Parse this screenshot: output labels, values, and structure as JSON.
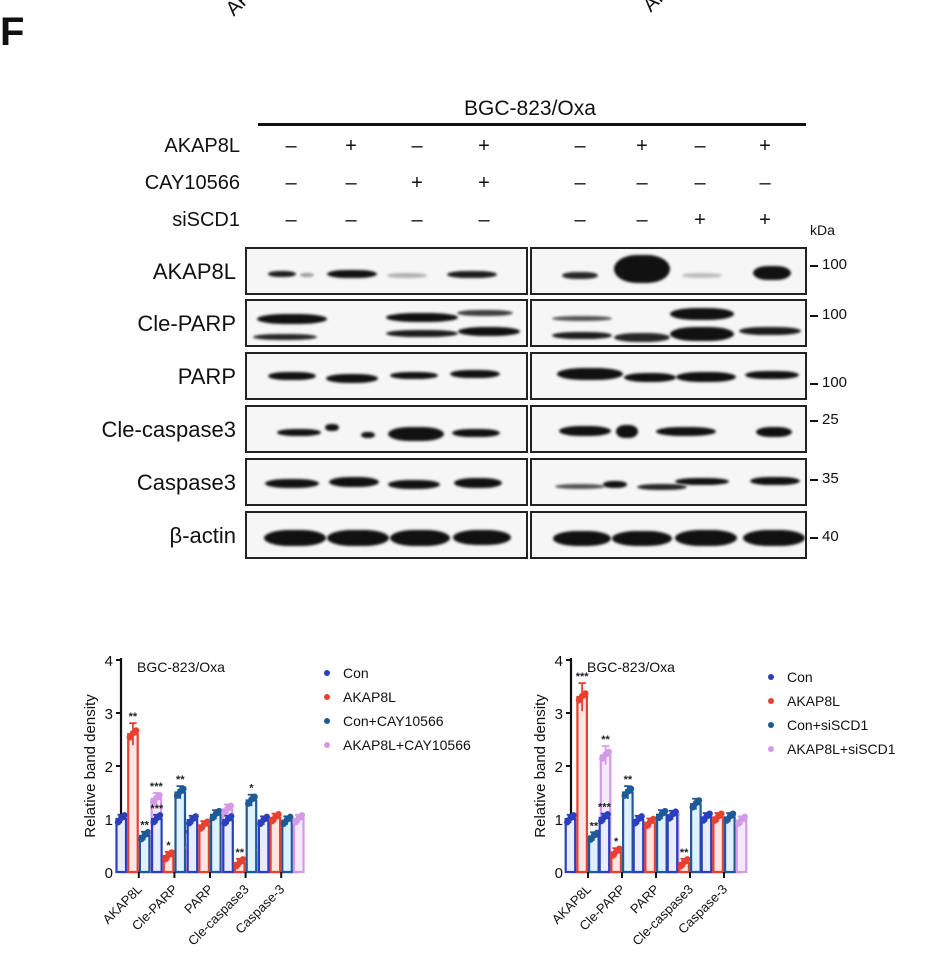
{
  "figure": {
    "panel_letter": "F",
    "top_fragments": [
      "AK",
      "AK"
    ],
    "cell_line": "BGC-823/Oxa",
    "kda_label": "kDa",
    "treatments": [
      {
        "label": "AKAP8L",
        "signs": [
          "–",
          "+",
          "–",
          "+",
          "–",
          "+",
          "–",
          "+"
        ]
      },
      {
        "label": "CAY10566",
        "signs": [
          "–",
          "–",
          "+",
          "+",
          "–",
          "–",
          "–",
          "–"
        ]
      },
      {
        "label": "siSCD1",
        "signs": [
          "–",
          "–",
          "–",
          "–",
          "–",
          "–",
          "+",
          "+"
        ]
      }
    ],
    "blots": [
      {
        "label": "AKAP8L",
        "mw": "100"
      },
      {
        "label": "Cle-PARP",
        "mw": "100"
      },
      {
        "label": "PARP",
        "mw": "100"
      },
      {
        "label": "Cle-caspase3",
        "mw": "25"
      },
      {
        "label": "Caspase3",
        "mw": "35"
      },
      {
        "label": "β-actin",
        "mw": "40"
      }
    ]
  },
  "colors": {
    "con": "#2a3fbf",
    "akap8l": "#e8402f",
    "con_treat": "#1f5a96",
    "akap8l_treat": "#d49ae8"
  },
  "chart_data": [
    {
      "type": "bar",
      "title": "BGC-823/Oxa",
      "xlabel": "",
      "ylabel": "Relative  band density",
      "ylim": [
        0,
        4
      ],
      "yticks": [
        "0",
        "1",
        "2",
        "3",
        "4"
      ],
      "categories": [
        "AKAP8L",
        "Cle-PARP",
        "PARP",
        "Cle-caspase3",
        "Caspase-3"
      ],
      "legend_position": "right",
      "series": [
        {
          "name": "Con",
          "values": [
            1.0,
            1.0,
            0.98,
            0.98,
            0.97
          ],
          "sig": [
            "",
            "***",
            "",
            "",
            ""
          ]
        },
        {
          "name": "AKAP8L",
          "values": [
            2.6,
            0.3,
            0.88,
            0.17,
            1.02
          ],
          "sig": [
            "**",
            "*",
            "",
            "**",
            ""
          ]
        },
        {
          "name": "Con+CAY10566",
          "values": [
            0.68,
            1.5,
            1.08,
            1.35,
            0.97
          ],
          "sig": [
            "**",
            "**",
            "",
            "*",
            ""
          ]
        },
        {
          "name": "AKAP8L+CAY10566",
          "values": [
            1.38,
            0.52,
            1.18,
            0.48,
            1.0
          ],
          "sig": [
            "***",
            "***",
            "",
            "*",
            ""
          ]
        }
      ]
    },
    {
      "type": "bar",
      "title": "BGC-823/Oxa",
      "xlabel": "",
      "ylabel": "Relative  band density",
      "ylim": [
        0,
        4
      ],
      "yticks": [
        "0",
        "1",
        "2",
        "3",
        "4"
      ],
      "categories": [
        "AKAP8L",
        "Cle-PARP",
        "PARP",
        "Cle-caspase3",
        "Caspase-3"
      ],
      "legend_position": "right",
      "series": [
        {
          "name": "Con",
          "values": [
            1.0,
            1.02,
            0.98,
            1.07,
            1.03
          ],
          "sig": [
            "",
            "***",
            "",
            "",
            ""
          ]
        },
        {
          "name": "AKAP8L",
          "values": [
            3.3,
            0.37,
            0.93,
            0.17,
            1.03
          ],
          "sig": [
            "***",
            "*",
            "",
            "**",
            ""
          ]
        },
        {
          "name": "Con+siSCD1",
          "values": [
            0.67,
            1.5,
            1.08,
            1.28,
            1.03
          ],
          "sig": [
            "**",
            "**",
            "",
            "",
            ""
          ]
        },
        {
          "name": "AKAP8L+siSCD1",
          "values": [
            2.2,
            0.63,
            1.02,
            0.47,
            0.97
          ],
          "sig": [
            "**",
            "***",
            "",
            "*",
            ""
          ]
        }
      ]
    }
  ]
}
